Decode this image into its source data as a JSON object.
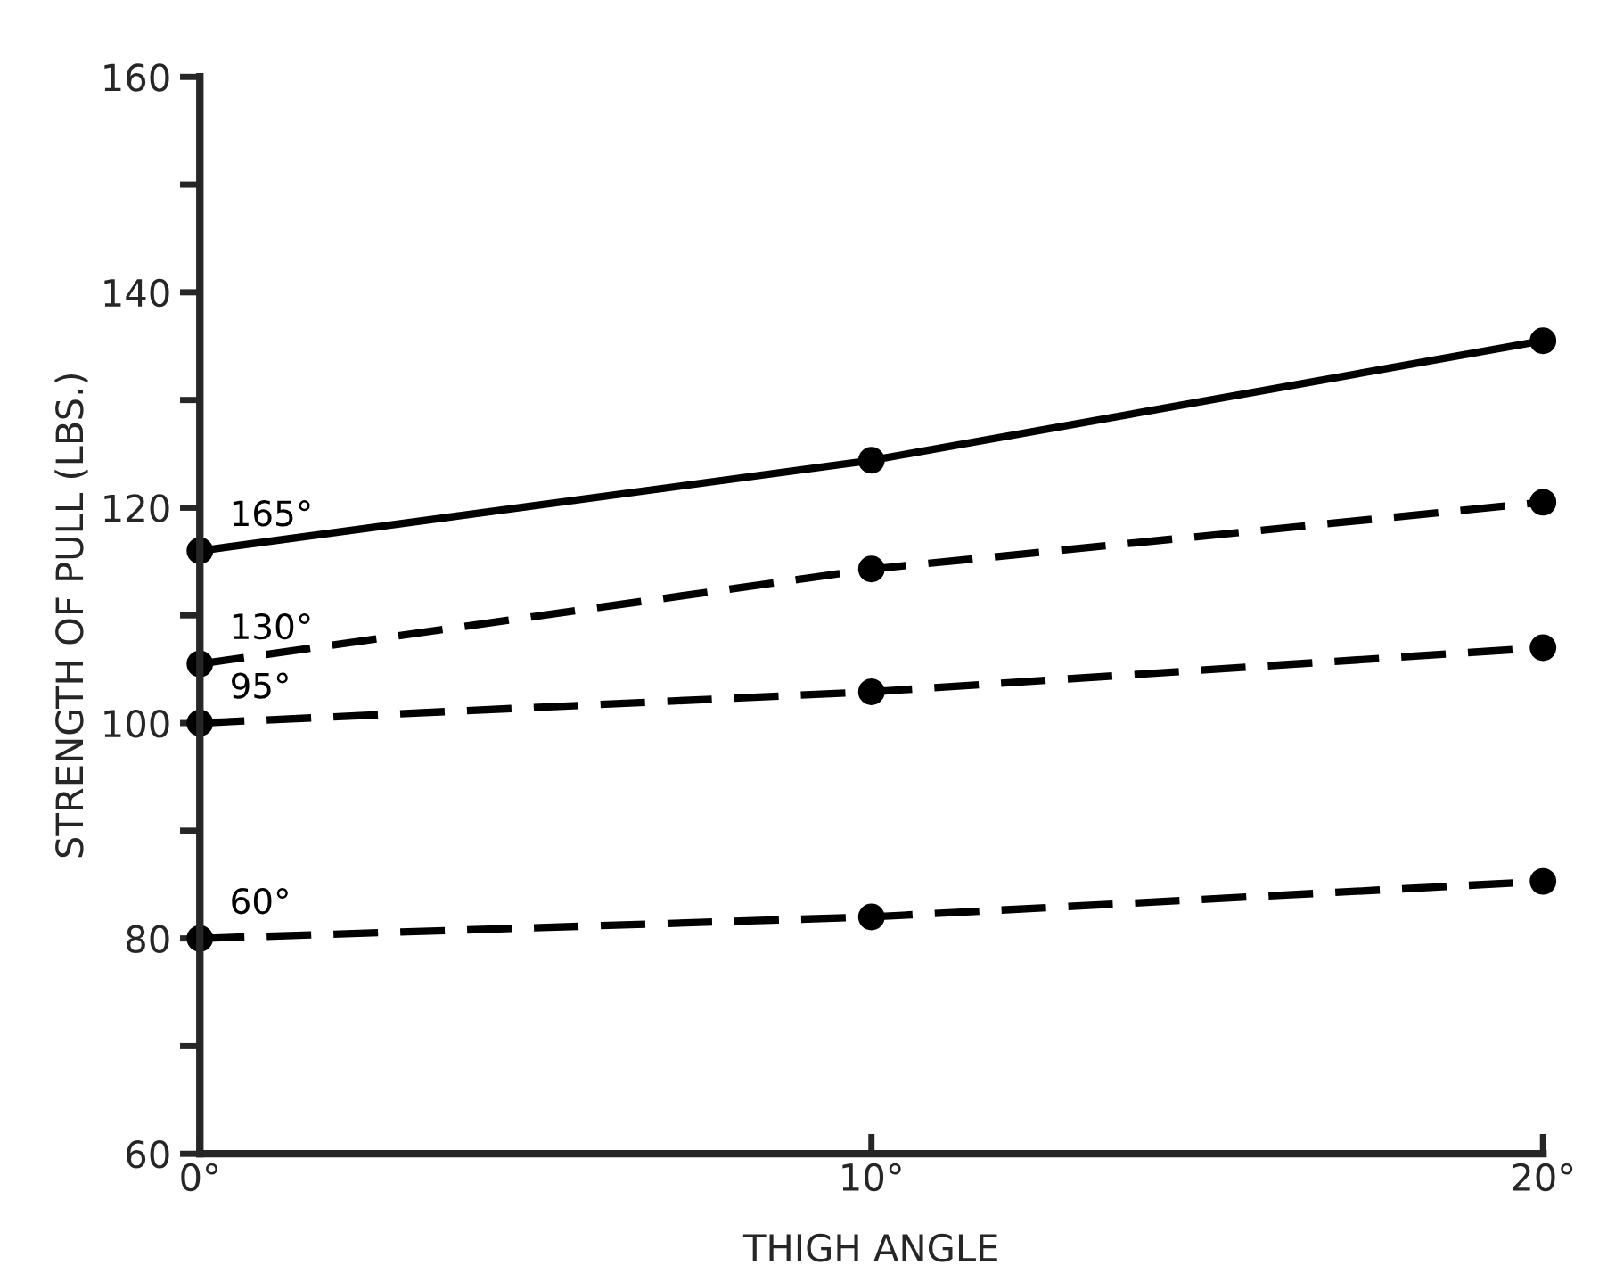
{
  "chart_data": {
    "type": "line",
    "xlabel": "THIGH ANGLE",
    "ylabel": "STRENGTH OF PULL (LBS.)",
    "x": [
      0,
      10,
      20
    ],
    "series": [
      {
        "name": "165°",
        "color": "#000000",
        "line_style": "solid",
        "values": [
          116,
          124.4,
          135.5
        ]
      },
      {
        "name": "130°",
        "color": "#000000",
        "line_style": "dashed",
        "values": [
          105.5,
          114.3,
          120.5
        ]
      },
      {
        "name": "95°",
        "color": "#000000",
        "line_style": "dashed",
        "values": [
          100,
          102.9,
          107
        ]
      },
      {
        "name": "60°",
        "color": "#000000",
        "line_style": "dashed",
        "values": [
          80,
          82,
          85.3
        ]
      }
    ],
    "xlim": [
      0,
      20
    ],
    "xticks": [
      {
        "value": 0,
        "label": "0°"
      },
      {
        "value": 10,
        "label": "10°"
      },
      {
        "value": 20,
        "label": "20°"
      }
    ],
    "ylim": [
      60,
      160
    ],
    "yticks": [
      60,
      {
        "value": 70,
        "label": null
      },
      80,
      {
        "value": 90,
        "label": null
      },
      100,
      {
        "value": 110,
        "label": null
      },
      120,
      {
        "value": 130,
        "label": null
      },
      140,
      {
        "value": 150,
        "label": null
      },
      160
    ],
    "marker": "circle",
    "grid": false,
    "legend": false
  }
}
